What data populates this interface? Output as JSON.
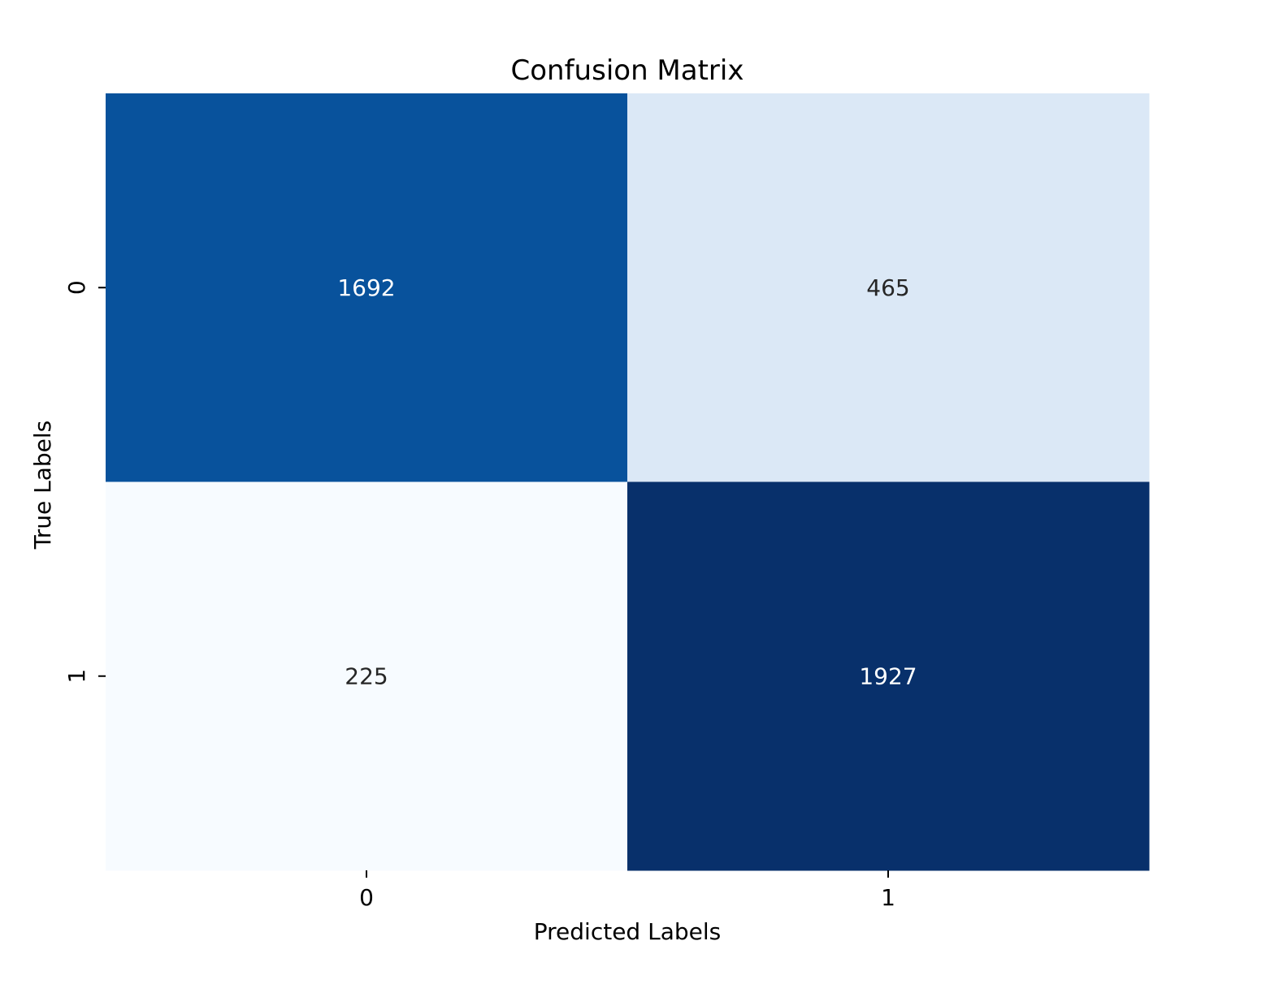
{
  "chart_data": {
    "type": "heatmap",
    "title": "Confusion Matrix",
    "xlabel": "Predicted Labels",
    "ylabel": "True Labels",
    "x_categories": [
      "0",
      "1"
    ],
    "y_categories": [
      "0",
      "1"
    ],
    "values": [
      [
        1692,
        465
      ],
      [
        225,
        1927
      ]
    ],
    "colormap": "Blues",
    "color_range": [
      225,
      1927
    ],
    "cell_colors": [
      [
        "#08529c",
        "#dbe8f6"
      ],
      [
        "#f7fbff",
        "#08306b"
      ]
    ],
    "annotation_colors": [
      [
        "#ffffff",
        "#262626"
      ],
      [
        "#262626",
        "#ffffff"
      ]
    ],
    "colorbar": false
  }
}
